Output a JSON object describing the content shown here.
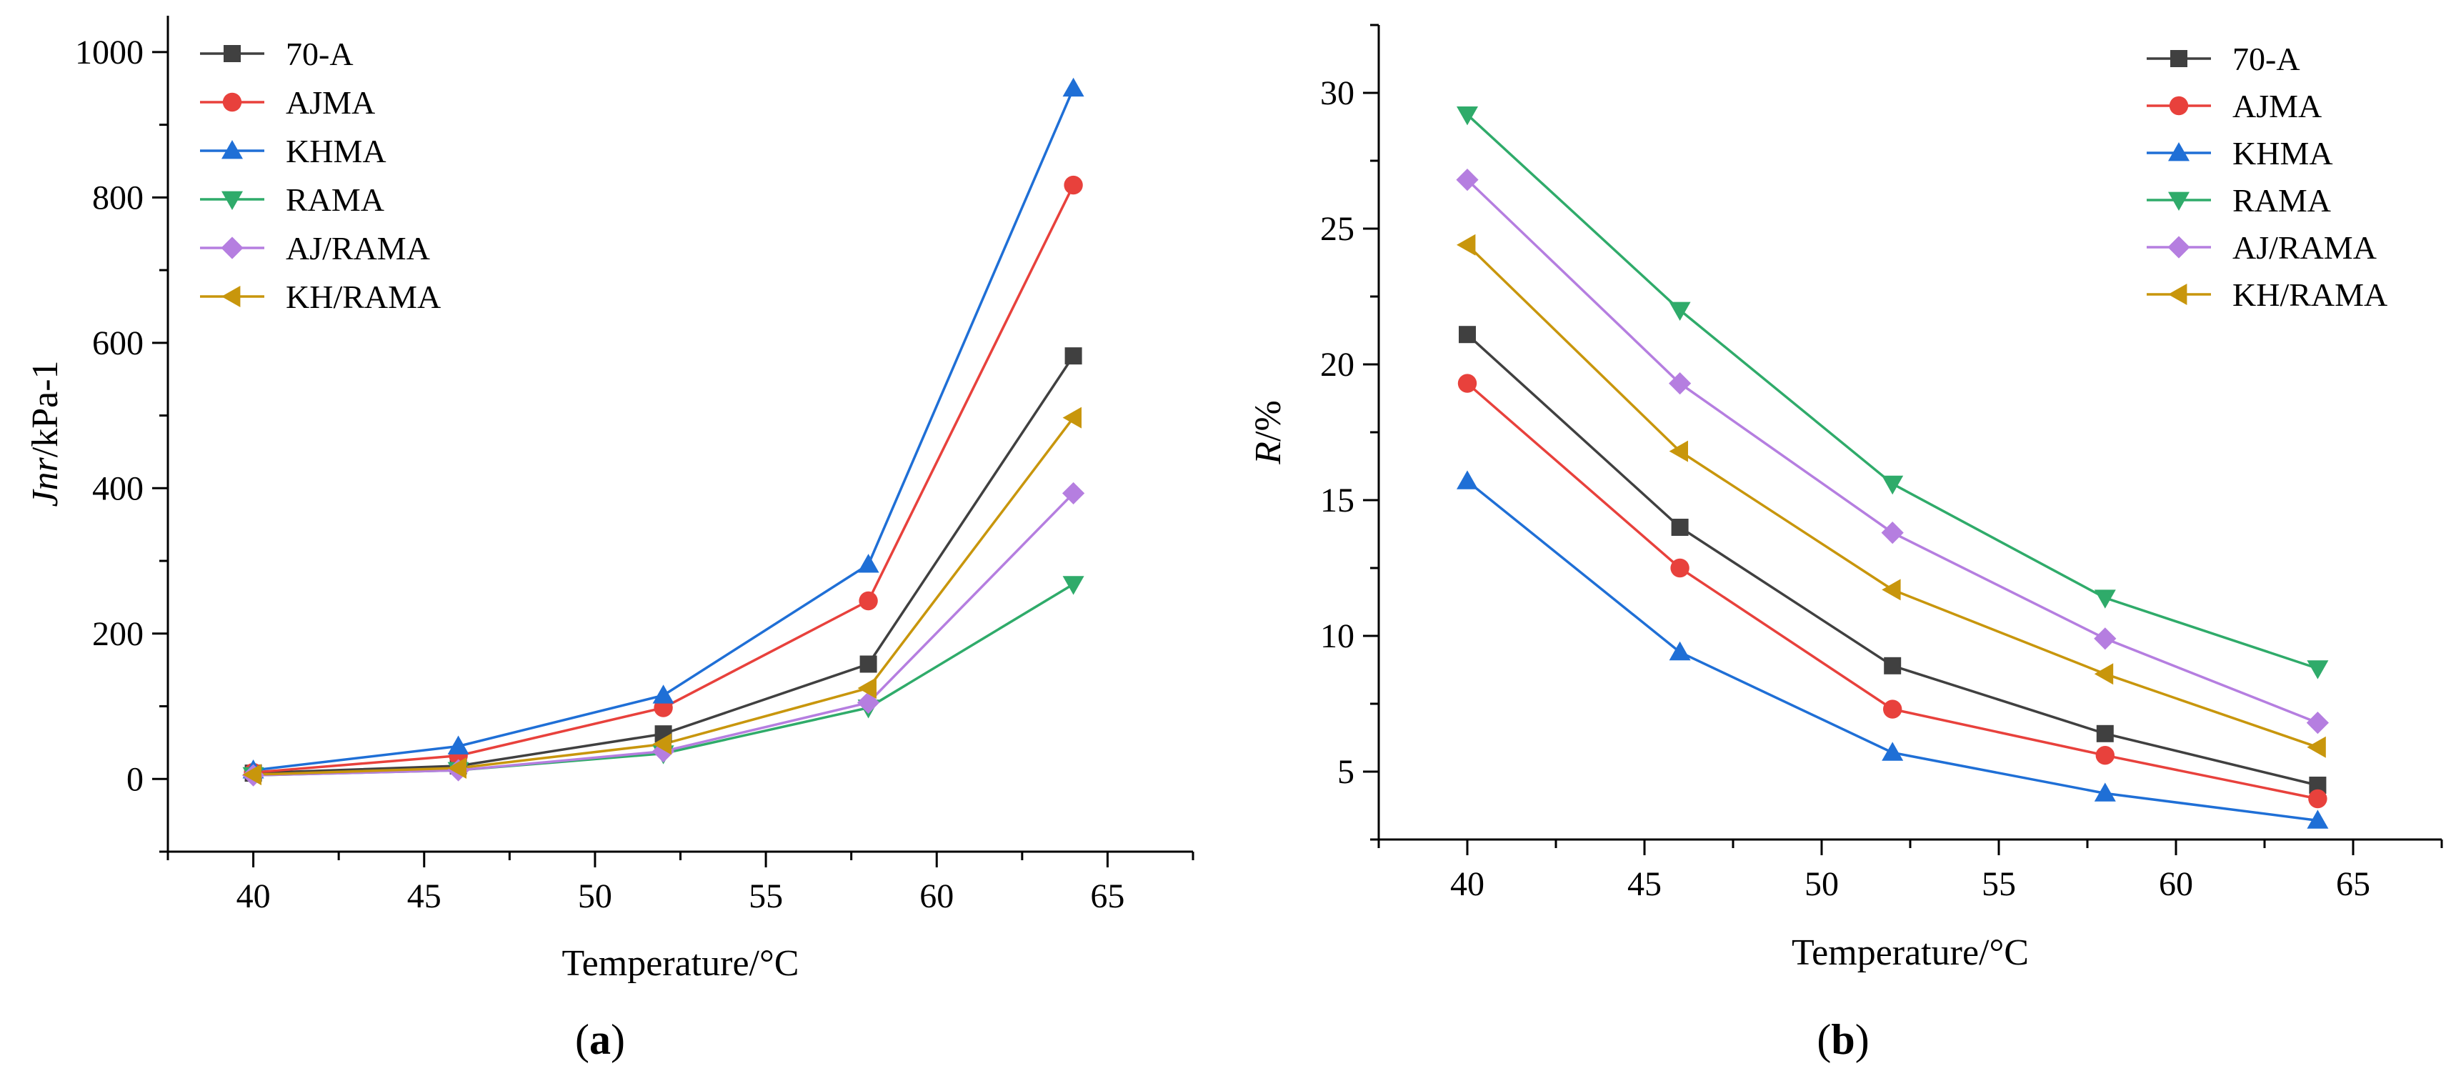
{
  "chart_data": [
    {
      "id": "a",
      "type": "line",
      "panel_label": "a",
      "xlabel": "Temperature/°C",
      "ylabel_italic": "Jnr",
      "ylabel_rest": "/kPa-1",
      "xlim": [
        37.5,
        67.5
      ],
      "ylim": [
        -100,
        1050
      ],
      "xticks": [
        40,
        45,
        50,
        55,
        60,
        65
      ],
      "yticks": [
        0,
        200,
        400,
        600,
        800,
        1000
      ],
      "x": [
        40,
        46,
        52,
        58,
        64
      ],
      "legend_position": "top-left",
      "series": [
        {
          "name": "70-A",
          "color": "#404040",
          "marker": "square",
          "values": [
            8,
            18,
            62,
            158,
            582
          ]
        },
        {
          "name": "AJMA",
          "color": "#e8413c",
          "marker": "circle",
          "values": [
            9,
            32,
            98,
            245,
            817
          ]
        },
        {
          "name": "KHMA",
          "color": "#1f6fd6",
          "marker": "triangle-up",
          "values": [
            12,
            45,
            115,
            295,
            950
          ]
        },
        {
          "name": "RAMA",
          "color": "#2fab6a",
          "marker": "triangle-down",
          "values": [
            5,
            12,
            35,
            98,
            268
          ]
        },
        {
          "name": "AJ/RAMA",
          "color": "#b57ee0",
          "marker": "diamond",
          "values": [
            5,
            12,
            38,
            105,
            393
          ]
        },
        {
          "name": "KH/RAMA",
          "color": "#c8960c",
          "marker": "triangle-left",
          "values": [
            6,
            15,
            48,
            125,
            497
          ]
        }
      ]
    },
    {
      "id": "b",
      "type": "line",
      "panel_label": "b",
      "xlabel": "Temperature/°C",
      "ylabel_italic": "R",
      "ylabel_rest": "/%",
      "xlim": [
        37.5,
        67.5
      ],
      "ylim": [
        2.5,
        32.5
      ],
      "xticks": [
        40,
        45,
        50,
        55,
        60,
        65
      ],
      "yticks": [
        5,
        10,
        15,
        20,
        25,
        30
      ],
      "x": [
        40,
        46,
        52,
        58,
        64
      ],
      "legend_position": "top-right",
      "series": [
        {
          "name": "70-A",
          "color": "#404040",
          "marker": "square",
          "values": [
            21.1,
            14.0,
            8.9,
            6.4,
            4.5
          ]
        },
        {
          "name": "AJMA",
          "color": "#e8413c",
          "marker": "circle",
          "values": [
            19.3,
            12.5,
            7.3,
            5.6,
            4.0
          ]
        },
        {
          "name": "KHMA",
          "color": "#1f6fd6",
          "marker": "triangle-up",
          "values": [
            15.7,
            9.4,
            5.7,
            4.2,
            3.2
          ]
        },
        {
          "name": "RAMA",
          "color": "#2fab6a",
          "marker": "triangle-down",
          "values": [
            29.2,
            22.0,
            15.6,
            11.4,
            8.8
          ]
        },
        {
          "name": "AJ/RAMA",
          "color": "#b57ee0",
          "marker": "diamond",
          "values": [
            26.8,
            19.3,
            13.8,
            9.9,
            6.8
          ]
        },
        {
          "name": "KH/RAMA",
          "color": "#c8960c",
          "marker": "triangle-left",
          "values": [
            24.4,
            16.8,
            11.7,
            8.6,
            5.9
          ]
        }
      ]
    }
  ]
}
